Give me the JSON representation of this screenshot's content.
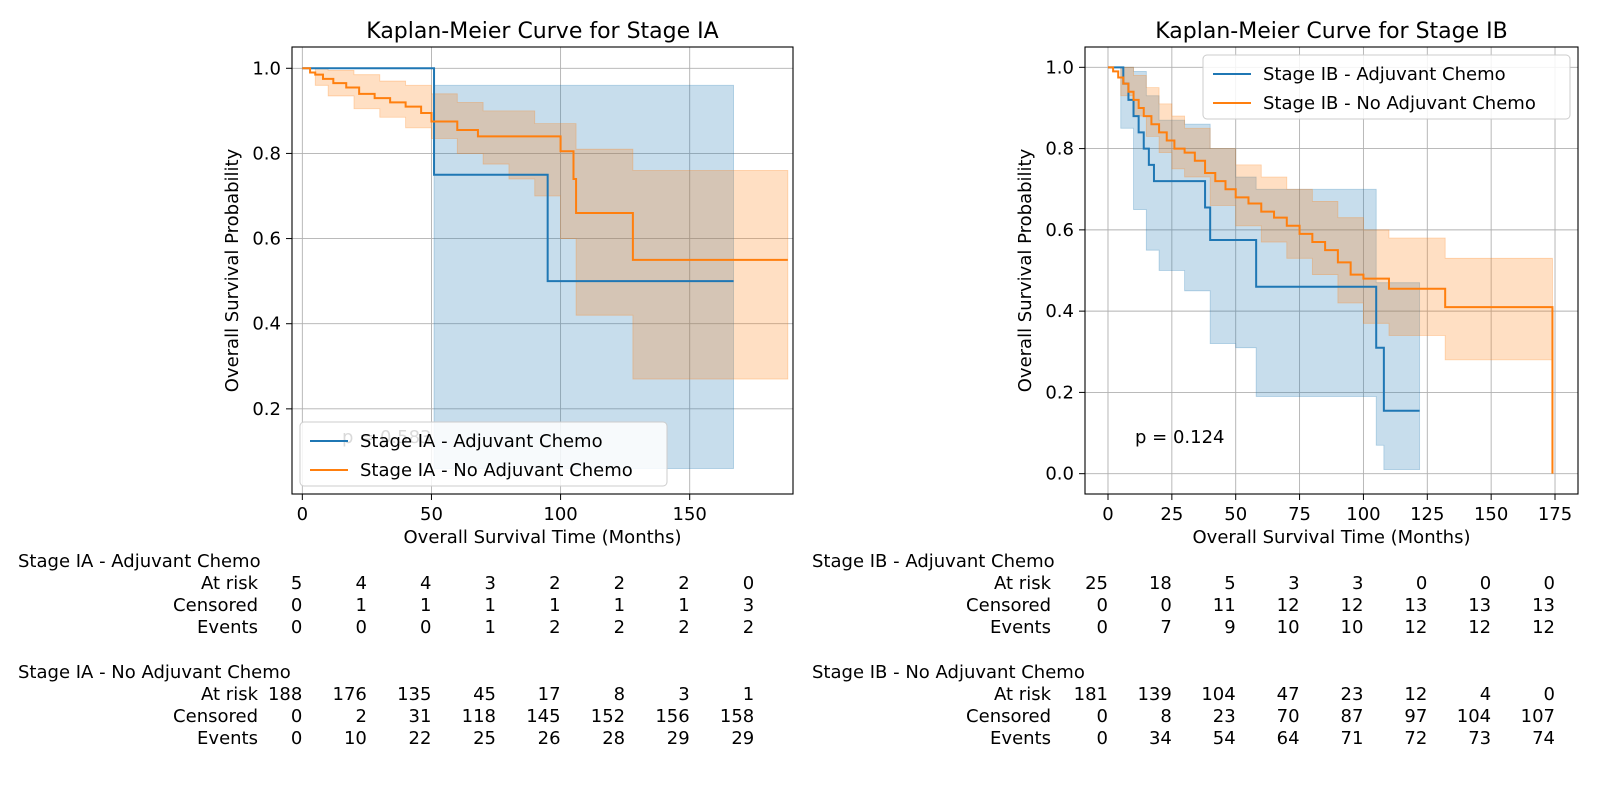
{
  "colors": {
    "adjuvant": "#1f77b4",
    "no_adjuvant": "#ff7f0e",
    "grid": "#b0b0b0"
  },
  "chart_data": [
    {
      "type": "line",
      "title": "Kaplan-Meier Curve for Stage IA",
      "xlabel": "Overall Survival Time (Months)",
      "ylabel": "Overall Survival Probability",
      "xlim": [
        -4,
        190
      ],
      "ylim": [
        0.0,
        1.05
      ],
      "xticks": [
        0,
        50,
        100,
        150
      ],
      "yticks": [
        0.2,
        0.4,
        0.6,
        0.8,
        1.0
      ],
      "ytick_labels": [
        "0.2",
        "0.4",
        "0.6",
        "0.8",
        "1.0"
      ],
      "grid": true,
      "legend_position": "lower-left",
      "annotation": "p = 0.583",
      "series": [
        {
          "name": "Stage IA - Adjuvant Chemo",
          "color": "#1f77b4",
          "x": [
            0,
            51,
            51,
            95,
            95,
            167
          ],
          "y": [
            1.0,
            1.0,
            0.75,
            0.75,
            0.5,
            0.5
          ],
          "ci": {
            "x": [
              51,
              95,
              167
            ],
            "lo": [
              0.06,
              0.06,
              0.06
            ],
            "hi": [
              0.96,
              0.96,
              0.84
            ]
          }
        },
        {
          "name": "Stage IA - No Adjuvant Chemo",
          "color": "#ff7f0e",
          "x": [
            0,
            3,
            5,
            8,
            12,
            17,
            22,
            28,
            34,
            40,
            46,
            50,
            55,
            60,
            68,
            80,
            100,
            105,
            106,
            128,
            188
          ],
          "y": [
            1.0,
            0.99,
            0.985,
            0.975,
            0.965,
            0.955,
            0.94,
            0.93,
            0.92,
            0.91,
            0.895,
            0.875,
            0.875,
            0.855,
            0.84,
            0.84,
            0.805,
            0.74,
            0.66,
            0.55,
            0.55
          ],
          "ci": {
            "x": [
              0,
              5,
              10,
              20,
              30,
              40,
              50,
              60,
              70,
              80,
              90,
              100,
              106,
              128,
              188
            ],
            "lo": [
              1.0,
              0.96,
              0.935,
              0.905,
              0.885,
              0.86,
              0.835,
              0.8,
              0.775,
              0.74,
              0.7,
              0.6,
              0.42,
              0.27,
              0.27
            ],
            "hi": [
              1.0,
              1.0,
              0.995,
              0.985,
              0.97,
              0.96,
              0.94,
              0.92,
              0.9,
              0.9,
              0.87,
              0.87,
              0.81,
              0.76,
              0.76
            ]
          }
        }
      ],
      "risk_table": {
        "times": [
          0,
          25,
          50,
          75,
          100,
          125,
          150,
          175
        ],
        "groups": [
          {
            "name": "Stage IA - Adjuvant Chemo",
            "at_risk": [
              5,
              4,
              4,
              3,
              2,
              2,
              2,
              0
            ],
            "censored": [
              0,
              1,
              1,
              1,
              1,
              1,
              1,
              3
            ],
            "events": [
              0,
              0,
              0,
              1,
              2,
              2,
              2,
              2
            ]
          },
          {
            "name": "Stage IA - No Adjuvant Chemo",
            "at_risk": [
              188,
              176,
              135,
              45,
              17,
              8,
              3,
              1
            ],
            "censored": [
              0,
              2,
              31,
              118,
              145,
              152,
              156,
              158
            ],
            "events": [
              0,
              10,
              22,
              25,
              26,
              28,
              29,
              29
            ]
          }
        ]
      }
    },
    {
      "type": "line",
      "title": "Kaplan-Meier Curve for Stage IB",
      "xlabel": "Overall Survival Time (Months)",
      "ylabel": "Overall Survival Probability",
      "xlim": [
        -9,
        184
      ],
      "ylim": [
        -0.05,
        1.05
      ],
      "xticks": [
        0,
        25,
        50,
        75,
        100,
        125,
        150,
        175
      ],
      "yticks": [
        0.0,
        0.2,
        0.4,
        0.6,
        0.8,
        1.0
      ],
      "ytick_labels": [
        "0.0",
        "0.2",
        "0.4",
        "0.6",
        "0.8",
        "1.0"
      ],
      "grid": true,
      "legend_position": "upper-right",
      "annotation": "p = 0.124",
      "series": [
        {
          "name": "Stage IB - Adjuvant Chemo",
          "color": "#1f77b4",
          "x": [
            0,
            4,
            6,
            8,
            10,
            12,
            14,
            16,
            18,
            25,
            32,
            38,
            40,
            46,
            56,
            58,
            70,
            90,
            100,
            105,
            108,
            122
          ],
          "y": [
            1.0,
            1.0,
            0.96,
            0.92,
            0.88,
            0.84,
            0.8,
            0.76,
            0.72,
            0.72,
            0.72,
            0.655,
            0.575,
            0.575,
            0.575,
            0.46,
            0.46,
            0.46,
            0.46,
            0.31,
            0.155,
            0.155
          ],
          "ci": {
            "x": [
              5,
              10,
              15,
              20,
              30,
              40,
              50,
              58,
              70,
              90,
              105,
              108,
              122
            ],
            "lo": [
              0.85,
              0.65,
              0.55,
              0.5,
              0.45,
              0.32,
              0.31,
              0.19,
              0.19,
              0.19,
              0.07,
              0.01,
              0.01
            ],
            "hi": [
              1.0,
              0.99,
              0.93,
              0.87,
              0.86,
              0.8,
              0.73,
              0.7,
              0.7,
              0.7,
              0.47,
              0.47,
              0.47
            ]
          }
        },
        {
          "name": "Stage IB - No Adjuvant Chemo",
          "color": "#ff7f0e",
          "x": [
            0,
            2,
            4,
            6,
            8,
            10,
            12,
            14,
            17,
            20,
            23,
            26,
            30,
            34,
            38,
            42,
            46,
            50,
            55,
            60,
            65,
            70,
            75,
            80,
            85,
            90,
            95,
            100,
            105,
            110,
            120,
            132,
            140,
            150,
            160,
            174,
            174
          ],
          "y": [
            1.0,
            0.99,
            0.975,
            0.96,
            0.94,
            0.92,
            0.9,
            0.88,
            0.86,
            0.84,
            0.82,
            0.8,
            0.79,
            0.77,
            0.74,
            0.72,
            0.7,
            0.68,
            0.665,
            0.645,
            0.63,
            0.61,
            0.59,
            0.57,
            0.55,
            0.52,
            0.49,
            0.48,
            0.48,
            0.455,
            0.455,
            0.41,
            0.41,
            0.41,
            0.41,
            0.41,
            0.0
          ],
          "ci": {
            "x": [
              0,
              5,
              10,
              15,
              20,
              25,
              30,
              40,
              50,
              60,
              70,
              80,
              90,
              100,
              110,
              120,
              132,
              150,
              174
            ],
            "lo": [
              1.0,
              0.93,
              0.88,
              0.83,
              0.79,
              0.75,
              0.73,
              0.66,
              0.61,
              0.57,
              0.53,
              0.49,
              0.42,
              0.37,
              0.34,
              0.34,
              0.28,
              0.28,
              0.28
            ],
            "hi": [
              1.0,
              1.0,
              0.98,
              0.95,
              0.91,
              0.88,
              0.85,
              0.8,
              0.76,
              0.73,
              0.7,
              0.67,
              0.63,
              0.6,
              0.58,
              0.58,
              0.53,
              0.53,
              0.53
            ]
          }
        }
      ],
      "risk_table": {
        "times": [
          0,
          25,
          50,
          75,
          100,
          125,
          150,
          175
        ],
        "groups": [
          {
            "name": "Stage IB - Adjuvant Chemo",
            "at_risk": [
              25,
              18,
              5,
              3,
              3,
              0,
              0,
              0
            ],
            "censored": [
              0,
              0,
              11,
              12,
              12,
              13,
              13,
              13
            ],
            "events": [
              0,
              7,
              9,
              10,
              10,
              12,
              12,
              12
            ]
          },
          {
            "name": "Stage IB - No Adjuvant Chemo",
            "at_risk": [
              181,
              139,
              104,
              47,
              23,
              12,
              4,
              0
            ],
            "censored": [
              0,
              8,
              23,
              70,
              87,
              97,
              104,
              107
            ],
            "events": [
              0,
              34,
              54,
              64,
              71,
              72,
              73,
              74
            ]
          }
        ]
      }
    }
  ],
  "row_labels": {
    "at_risk": "At risk",
    "censored": "Censored",
    "events": "Events"
  }
}
